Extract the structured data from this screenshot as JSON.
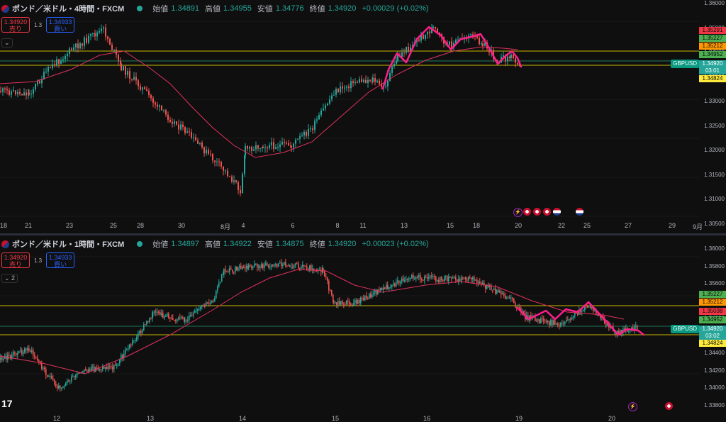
{
  "top": {
    "title": "ポンド／米ドル・4時間・FXCM",
    "ohlc": {
      "o_label": "始値",
      "o": "1.34891",
      "h_label": "高値",
      "h": "1.34955",
      "l_label": "安値",
      "l": "1.34776",
      "c_label": "終値",
      "c": "1.34920",
      "chg": "+0.00029 (+0.02%)"
    },
    "sell_price": "1.34920",
    "sell_label": "売り",
    "buy_price": "1.34933",
    "buy_label": "買い",
    "spread": "1.3",
    "collapse": "⌄",
    "price_axis": [
      "1.36000",
      "1.35000",
      "1.34000",
      "1.33500",
      "1.33000",
      "1.32500",
      "1.32000",
      "1.31500",
      "1.31000",
      "1.30500"
    ],
    "x_axis": [
      "18",
      "21",
      "23",
      "25",
      "28",
      "30",
      "8月",
      "4",
      "6",
      "8",
      "11",
      "13",
      "15",
      "18",
      "20",
      "22",
      "25",
      "27",
      "29",
      "9月"
    ],
    "price_tags": [
      {
        "v": "1.35291",
        "bg": "#f23645"
      },
      {
        "v": "1.35227",
        "bg": "#4caf50"
      },
      {
        "v": "1.35212",
        "bg": "#ff9800"
      },
      {
        "v": "1.34952",
        "bg": "#4caf50"
      },
      {
        "v": "1.34824",
        "bg": "#ffeb3b"
      }
    ],
    "symbol_tag": "GBPUSD",
    "cur_price": "1.34920",
    "countdown": "03:01",
    "chart_data": {
      "type": "candlestick",
      "ylim": [
        1.305,
        1.3615
      ],
      "series": [
        {
          "name": "SMA",
          "values": []
        }
      ]
    }
  },
  "bottom": {
    "title": "ポンド／米ドル・1時間・FXCM",
    "ohlc": {
      "o_label": "始値",
      "o": "1.34897",
      "h_label": "高値",
      "h": "1.34922",
      "l_label": "安値",
      "l": "1.34875",
      "c_label": "終値",
      "c": "1.34920",
      "chg": "+0.00023 (+0.02%)"
    },
    "sell_price": "1.34920",
    "sell_label": "売り",
    "buy_price": "1.34933",
    "buy_label": "買い",
    "spread": "1.3",
    "collapse": "⌄ 2",
    "price_axis": [
      "1.36000",
      "1.35800",
      "1.35600",
      "1.35400",
      "1.34800",
      "1.34600",
      "1.34400",
      "1.34200",
      "1.34000",
      "1.33800"
    ],
    "x_axis": [
      "12",
      "13",
      "14",
      "15",
      "16",
      "19",
      "20"
    ],
    "price_tags": [
      {
        "v": "1.35227",
        "bg": "#4caf50"
      },
      {
        "v": "1.35212",
        "bg": "#ff9800"
      },
      {
        "v": "1.35038",
        "bg": "#f23645"
      },
      {
        "v": "1.34952",
        "bg": "#4caf50"
      },
      {
        "v": "1.34824",
        "bg": "#ffeb3b"
      }
    ],
    "symbol_tag": "GBPUSD",
    "cur_price": "1.34920",
    "countdown": "03:02",
    "chart_data": {
      "type": "candlestick",
      "ylim": [
        1.337,
        1.3612
      ]
    }
  },
  "colors": {
    "up": "#26a69a",
    "down": "#ef5350",
    "sma": "#e0325e",
    "pattern": "#ff1e8c",
    "hline_yellow": "#c8b400",
    "hline_green": "#1b7a5a"
  },
  "logo": "17"
}
